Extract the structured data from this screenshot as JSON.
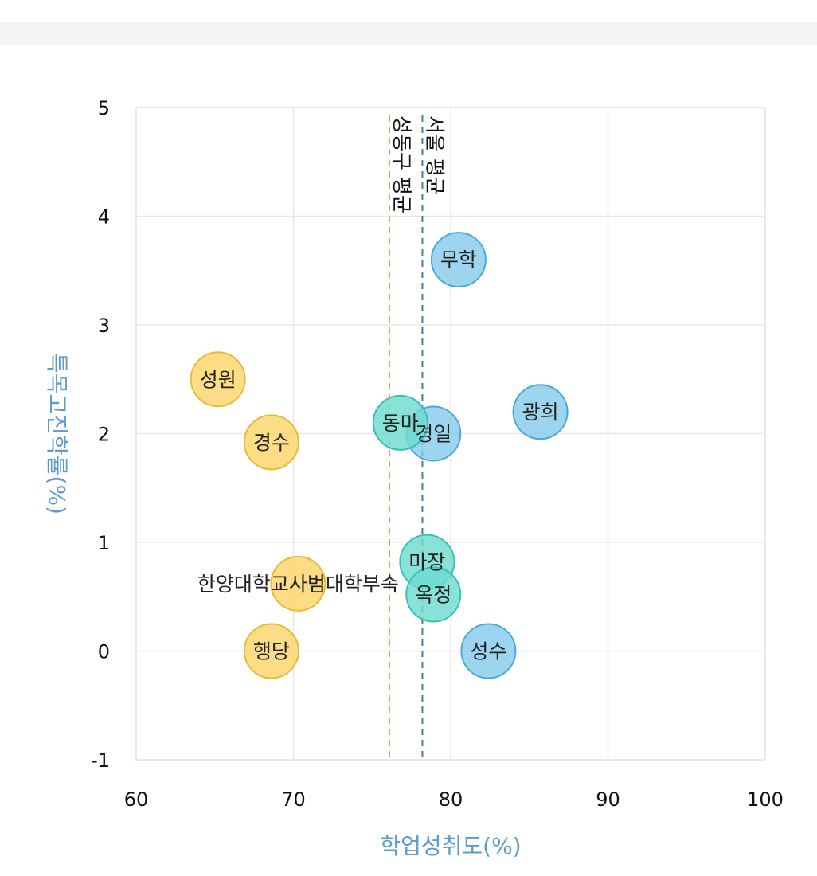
{
  "chart_data": {
    "type": "scatter",
    "xlabel": "학업성취도(%)",
    "ylabel": "특목고진학률(%)",
    "xlim": [
      60,
      100
    ],
    "ylim": [
      -1,
      5
    ],
    "xticks": [
      "60",
      "70",
      "80",
      "90",
      "100"
    ],
    "yticks": [
      "-1",
      "0",
      "1",
      "2",
      "3",
      "4",
      "5"
    ],
    "grid": true,
    "colors": {
      "yellow": "#fbd46a",
      "teal": "#6fdcd0",
      "blue": "#87cbec"
    },
    "strokes": {
      "yellow": "#e8bb3a",
      "teal": "#38c2b2",
      "blue": "#4cabd6"
    },
    "reference_lines": [
      {
        "label": "성동구 평균",
        "x": 76.1,
        "color": "#f0a050"
      },
      {
        "label": "서울 평균",
        "x": 78.2,
        "color": "#4a7f98"
      }
    ],
    "points": [
      {
        "label": "무학",
        "x": 80.5,
        "y": 3.6,
        "group": "blue"
      },
      {
        "label": "성원",
        "x": 65.2,
        "y": 2.5,
        "group": "yellow"
      },
      {
        "label": "광희",
        "x": 85.7,
        "y": 2.2,
        "group": "blue"
      },
      {
        "label": "경일",
        "x": 78.9,
        "y": 2.0,
        "group": "blue"
      },
      {
        "label": "동마",
        "x": 76.8,
        "y": 2.1,
        "group": "teal"
      },
      {
        "label": "경수",
        "x": 68.6,
        "y": 1.92,
        "group": "yellow"
      },
      {
        "label": "마장",
        "x": 78.5,
        "y": 0.82,
        "group": "teal"
      },
      {
        "label": "옥정",
        "x": 78.9,
        "y": 0.52,
        "group": "teal"
      },
      {
        "label": "한양대학교사범대학부속",
        "x": 70.3,
        "y": 0.62,
        "group": "yellow"
      },
      {
        "label": "행당",
        "x": 68.6,
        "y": 0.0,
        "group": "yellow"
      },
      {
        "label": "성수",
        "x": 82.4,
        "y": 0.0,
        "group": "blue"
      }
    ]
  }
}
